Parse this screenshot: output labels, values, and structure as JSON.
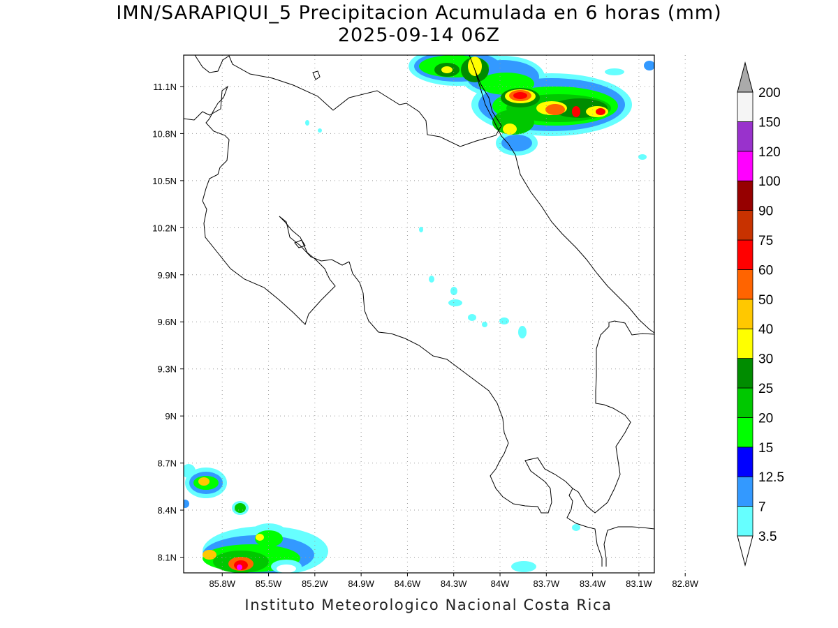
{
  "title": {
    "line1": "IMN/SARAPIQUI_5 Precipitacion Acumulada en 6 horas (mm)",
    "line2": "2025-09-14 06Z"
  },
  "credit": "Instituto Meteorologico Nacional Costa Rica",
  "map": {
    "lon_range": [
      -86.05,
      -83.0
    ],
    "lat_range": [
      8.0,
      11.3
    ],
    "x_ticks": [
      "85.8W",
      "85.5W",
      "85.2W",
      "84.9W",
      "84.6W",
      "84.3W",
      "84W",
      "83.7W",
      "83.4W",
      "83.1W",
      "82.8W"
    ],
    "y_ticks": [
      "11.1N",
      "10.8N",
      "10.5N",
      "10.2N",
      "9.9N",
      "9.6N",
      "9.3N",
      "9N",
      "8.7N",
      "8.4N",
      "8.1N"
    ],
    "grid": "dotted"
  },
  "colorbar": {
    "labels": [
      "3.5",
      "7",
      "12.5",
      "15",
      "20",
      "25",
      "30",
      "40",
      "50",
      "60",
      "75",
      "90",
      "100",
      "120",
      "150",
      "200"
    ],
    "colors": [
      "#66ffff",
      "#3399ff",
      "#0000ff",
      "#00ff00",
      "#00c800",
      "#008c00",
      "#ffff00",
      "#ffc800",
      "#ff6400",
      "#ff0000",
      "#c83200",
      "#960000",
      "#ff00ff",
      "#9932cc",
      "#f5f5f5",
      "#aaaaaa"
    ]
  }
}
